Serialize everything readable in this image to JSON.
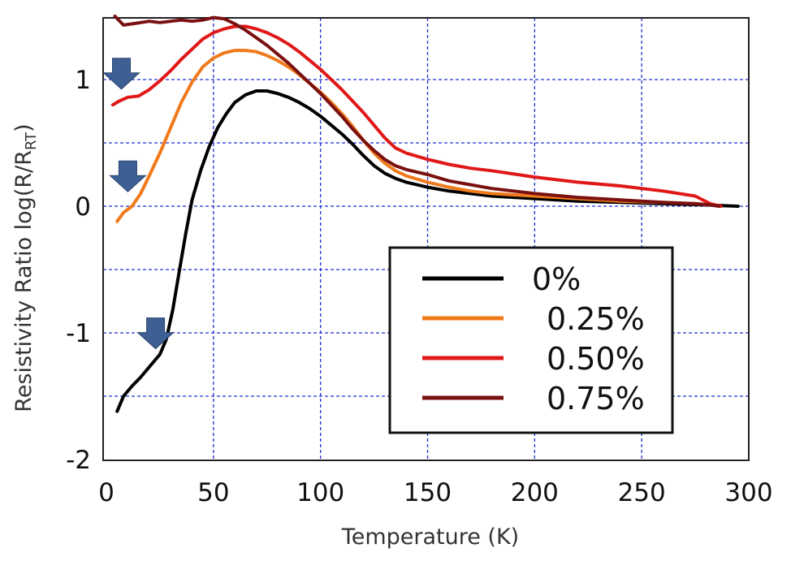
{
  "chart_data": {
    "type": "line",
    "xlabel": "Temperature (K)",
    "ylabel_main": "Resistivity Ratio log(R/R",
    "ylabel_sub": "RT",
    "ylabel_close": ")",
    "xlim": [
      0,
      300
    ],
    "ylim": [
      -2,
      1.5
    ],
    "x_ticks": [
      "0",
      "50",
      "100",
      "150",
      "200",
      "250",
      "300"
    ],
    "y_ticks": [
      "1",
      "0",
      "-1",
      "-2"
    ],
    "grid": true,
    "legend_position": "lower-right",
    "series": [
      {
        "name": "0%",
        "color": "#000000",
        "x": [
          5,
          8,
          12,
          16,
          20,
          25,
          28,
          31,
          34,
          37,
          40,
          44,
          48,
          52,
          56,
          60,
          65,
          70,
          75,
          80,
          85,
          90,
          95,
          100,
          105,
          110,
          115,
          120,
          125,
          130,
          135,
          140,
          150,
          160,
          170,
          180,
          190,
          200,
          220,
          240,
          260,
          280,
          295
        ],
        "y": [
          -1.62,
          -1.5,
          -1.42,
          -1.35,
          -1.27,
          -1.17,
          -1.05,
          -0.82,
          -0.52,
          -0.22,
          0.05,
          0.28,
          0.47,
          0.62,
          0.73,
          0.82,
          0.88,
          0.91,
          0.91,
          0.89,
          0.86,
          0.82,
          0.77,
          0.71,
          0.64,
          0.57,
          0.49,
          0.4,
          0.32,
          0.26,
          0.22,
          0.19,
          0.15,
          0.12,
          0.1,
          0.08,
          0.07,
          0.06,
          0.04,
          0.03,
          0.02,
          0.01,
          0.0
        ]
      },
      {
        "name": "0.25%",
        "color": "#ef7a1c",
        "x": [
          5,
          8,
          12,
          16,
          20,
          25,
          30,
          35,
          40,
          45,
          50,
          55,
          60,
          65,
          70,
          75,
          80,
          85,
          90,
          95,
          100,
          105,
          110,
          115,
          120,
          125,
          130,
          135,
          140,
          150,
          160,
          170,
          180,
          200,
          220,
          240,
          260,
          275,
          282
        ],
        "y": [
          -0.12,
          -0.05,
          0.0,
          0.1,
          0.24,
          0.42,
          0.62,
          0.82,
          0.98,
          1.1,
          1.17,
          1.21,
          1.23,
          1.23,
          1.22,
          1.19,
          1.15,
          1.1,
          1.04,
          0.97,
          0.9,
          0.82,
          0.73,
          0.63,
          0.52,
          0.42,
          0.34,
          0.28,
          0.24,
          0.19,
          0.15,
          0.12,
          0.1,
          0.08,
          0.06,
          0.04,
          0.03,
          0.02,
          0.01
        ]
      },
      {
        "name": "0.50%",
        "color": "#e01818",
        "x": [
          3,
          6,
          10,
          15,
          20,
          25,
          30,
          35,
          40,
          45,
          50,
          55,
          60,
          65,
          70,
          75,
          80,
          85,
          90,
          95,
          100,
          105,
          110,
          115,
          120,
          125,
          130,
          135,
          140,
          150,
          160,
          170,
          180,
          200,
          220,
          240,
          260,
          275,
          282,
          287
        ],
        "y": [
          0.8,
          0.83,
          0.86,
          0.87,
          0.92,
          0.99,
          1.07,
          1.16,
          1.24,
          1.32,
          1.37,
          1.4,
          1.42,
          1.42,
          1.4,
          1.37,
          1.33,
          1.28,
          1.22,
          1.15,
          1.08,
          1.0,
          0.92,
          0.83,
          0.74,
          0.64,
          0.54,
          0.46,
          0.42,
          0.37,
          0.33,
          0.3,
          0.28,
          0.23,
          0.19,
          0.16,
          0.12,
          0.08,
          0.02,
          0.0
        ]
      },
      {
        "name": "0.75%",
        "color": "#7a1010",
        "x": [
          4,
          8,
          12,
          16,
          20,
          25,
          30,
          35,
          40,
          45,
          50,
          55,
          60,
          65,
          70,
          75,
          80,
          85,
          90,
          95,
          100,
          105,
          110,
          115,
          120,
          125,
          130,
          135,
          140,
          150,
          160,
          170,
          180,
          200,
          220,
          240,
          260,
          275,
          282,
          286
        ],
        "y": [
          1.5,
          1.43,
          1.44,
          1.45,
          1.46,
          1.45,
          1.46,
          1.47,
          1.46,
          1.47,
          1.49,
          1.48,
          1.44,
          1.39,
          1.33,
          1.27,
          1.2,
          1.13,
          1.05,
          0.97,
          0.89,
          0.8,
          0.71,
          0.61,
          0.52,
          0.44,
          0.37,
          0.32,
          0.29,
          0.25,
          0.2,
          0.17,
          0.14,
          0.1,
          0.07,
          0.05,
          0.03,
          0.02,
          0.01,
          0.0
        ]
      }
    ],
    "annotations": [
      {
        "type": "arrow",
        "direction": "down",
        "color": "#3d5f93",
        "x": 7,
        "y": 0.95
      },
      {
        "type": "arrow",
        "direction": "down",
        "color": "#3d5f93",
        "x": 10,
        "y": 0.14
      },
      {
        "type": "arrow",
        "direction": "down",
        "color": "#3d5f93",
        "x": 23,
        "y": -1.1
      }
    ]
  }
}
